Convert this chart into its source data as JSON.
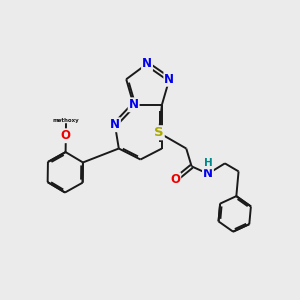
{
  "background_color": "#ebebeb",
  "atom_colors": {
    "C": "#1a1a1a",
    "N": "#0000ee",
    "O": "#ee0000",
    "S": "#aaaa00",
    "H": "#008888"
  },
  "bond_color": "#1a1a1a",
  "bond_width": 1.4,
  "doffset": 0.055,
  "fs": 8.5
}
